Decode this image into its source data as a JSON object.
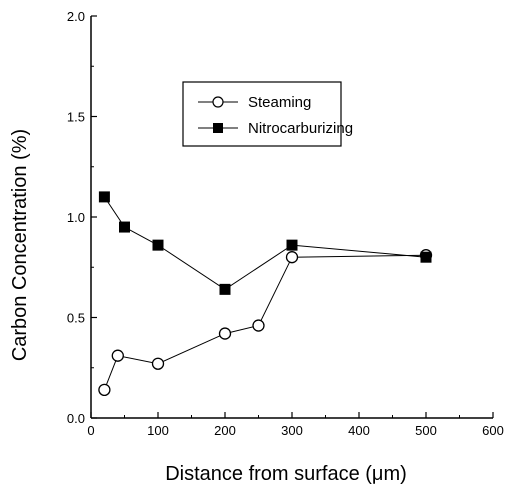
{
  "chart_data": {
    "type": "line",
    "xlabel": "Distance from surface (μm)",
    "ylabel": "Carbon Concentration (%)",
    "xlim": [
      0,
      600
    ],
    "ylim": [
      0,
      2.0
    ],
    "x_ticks": [
      "0",
      "100",
      "200",
      "300",
      "400",
      "500",
      "600"
    ],
    "y_ticks": [
      "0.0",
      "0.5",
      "1.0",
      "1.5",
      "2.0"
    ],
    "grid": false,
    "legend": "top-center",
    "series": [
      {
        "name": "Steaming",
        "marker": "open-circle",
        "x": [
          20,
          40,
          100,
          200,
          250,
          300,
          500
        ],
        "y": [
          0.14,
          0.31,
          0.27,
          0.42,
          0.46,
          0.8,
          0.81
        ]
      },
      {
        "name": "Nitrocarburizing",
        "marker": "filled-square",
        "x": [
          20,
          50,
          100,
          200,
          300,
          500
        ],
        "y": [
          1.1,
          0.95,
          0.86,
          0.64,
          0.86,
          0.8
        ]
      }
    ]
  }
}
